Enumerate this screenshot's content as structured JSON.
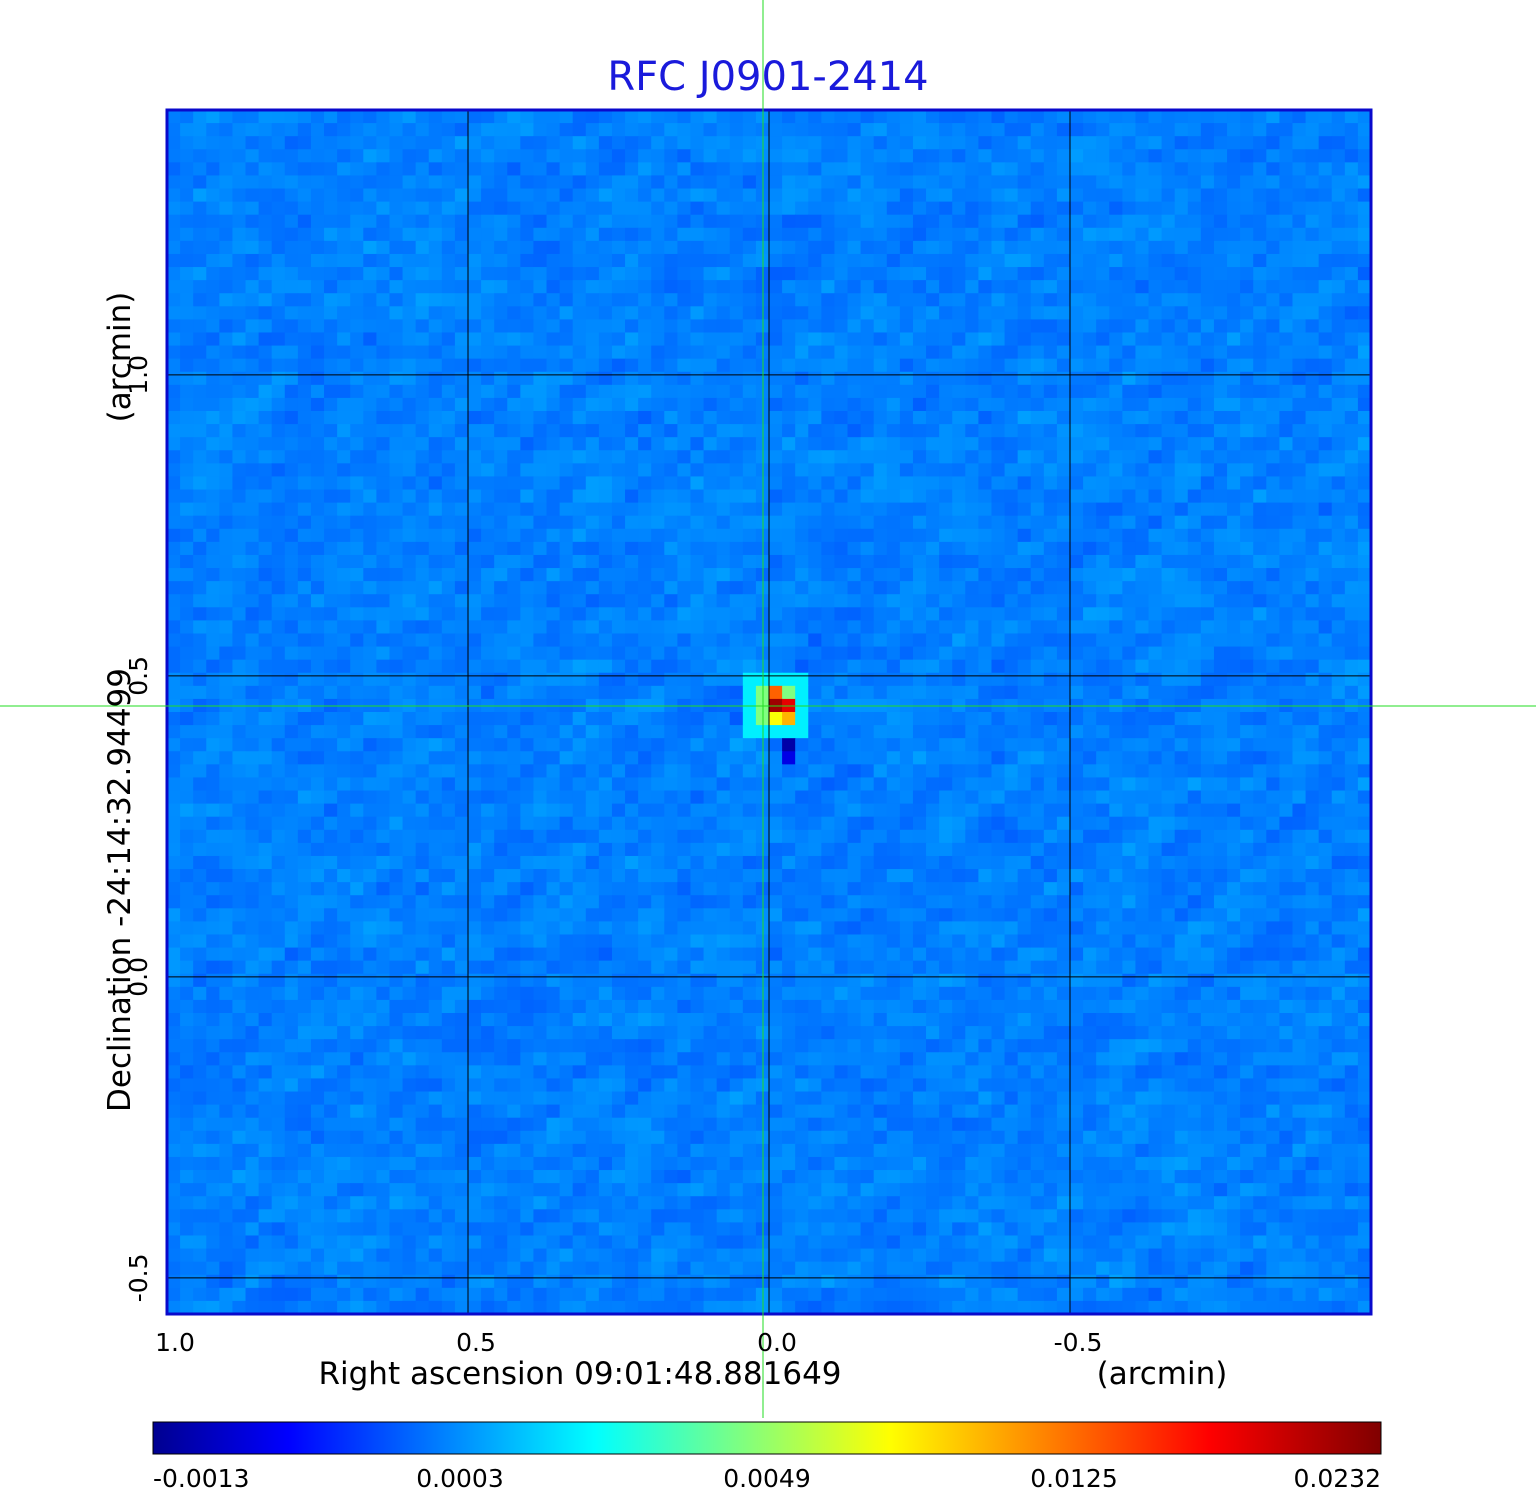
{
  "chart_data": {
    "type": "heatmap",
    "title": "RFC J0901-2414",
    "xlabel": "Right ascension  09:01:48.881649",
    "xunit": "(arcmin)",
    "ylabel": "Declination  -24:14:32.94499",
    "yunit": "(arcmin)",
    "x_range": [
      1.0,
      -1.0
    ],
    "y_range": [
      -0.56,
      1.44
    ],
    "x_ticks": [
      1.0,
      0.5,
      0.0,
      -0.5
    ],
    "x_tick_labels": [
      "1.0",
      "0.5",
      "0.0",
      "-0.5"
    ],
    "y_ticks": [
      -0.5,
      0.0,
      0.5,
      1.0
    ],
    "y_tick_labels": [
      "-0.5",
      "0.0",
      "0.5",
      "1.0"
    ],
    "grid": true,
    "crosshair": {
      "x": 0.0,
      "y": 0.45
    },
    "colorbar": {
      "ticks": [
        -0.0013,
        0.0003,
        0.0049,
        0.0125,
        0.0232
      ],
      "tick_labels": [
        "-0.0013",
        "0.0003",
        "0.0049",
        "0.0125",
        "0.0232"
      ],
      "colormap": "jet"
    },
    "source_peak": {
      "x": 0.0,
      "y": 0.45,
      "value": 0.0232
    },
    "colors": {
      "title": "#1a1adb",
      "frame": "#0a0acc",
      "grid": "#000000",
      "crosshair": "#22dd22"
    }
  }
}
